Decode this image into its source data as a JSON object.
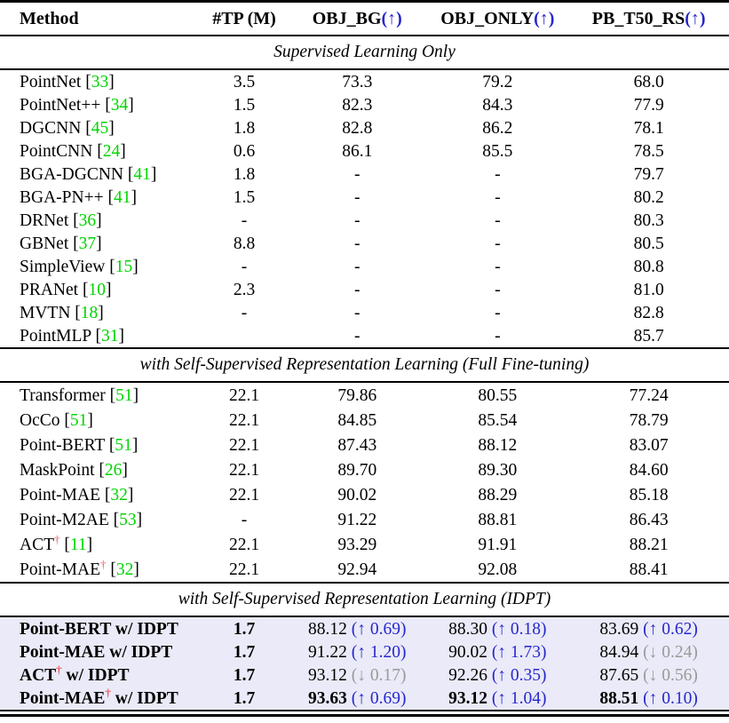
{
  "colors": {
    "accent_blue": "#2727cd",
    "citation_green": "#00d500",
    "muted_gray": "#9a9a9a",
    "dagger_red": "#ec5a5a",
    "highlight_bg": "#eaeaf8"
  },
  "header": {
    "columns": [
      {
        "label": "Method",
        "arrow": ""
      },
      {
        "label": "#TP (M)",
        "arrow": ""
      },
      {
        "label": "OBJ_BG",
        "arrow": "(↑)"
      },
      {
        "label": "OBJ_ONLY",
        "arrow": "(↑)"
      },
      {
        "label": "PB_T50_RS",
        "arrow": "(↑)"
      }
    ]
  },
  "sections": [
    {
      "title": "Supervised Learning Only",
      "highlight": false,
      "rows": [
        {
          "method": "PointNet",
          "cite": "33",
          "cells": [
            {
              "v": "3.5"
            },
            {
              "v": "73.3"
            },
            {
              "v": "79.2"
            },
            {
              "v": "68.0"
            }
          ]
        },
        {
          "method": "PointNet++",
          "cite": "34",
          "cells": [
            {
              "v": "1.5"
            },
            {
              "v": "82.3"
            },
            {
              "v": "84.3"
            },
            {
              "v": "77.9"
            }
          ]
        },
        {
          "method": "DGCNN",
          "cite": "45",
          "cells": [
            {
              "v": "1.8"
            },
            {
              "v": "82.8"
            },
            {
              "v": "86.2"
            },
            {
              "v": "78.1"
            }
          ]
        },
        {
          "method": "PointCNN",
          "cite": "24",
          "cells": [
            {
              "v": "0.6"
            },
            {
              "v": "86.1"
            },
            {
              "v": "85.5"
            },
            {
              "v": "78.5"
            }
          ]
        },
        {
          "method": "BGA-DGCNN",
          "cite": "41",
          "cells": [
            {
              "v": "1.8"
            },
            {
              "v": "-"
            },
            {
              "v": "-"
            },
            {
              "v": "79.7"
            }
          ]
        },
        {
          "method": "BGA-PN++",
          "cite": "41",
          "cells": [
            {
              "v": "1.5"
            },
            {
              "v": "-"
            },
            {
              "v": "-"
            },
            {
              "v": "80.2"
            }
          ]
        },
        {
          "method": "DRNet",
          "cite": "36",
          "cells": [
            {
              "v": "-"
            },
            {
              "v": "-"
            },
            {
              "v": "-"
            },
            {
              "v": "80.3"
            }
          ]
        },
        {
          "method": "GBNet",
          "cite": "37",
          "cells": [
            {
              "v": "8.8"
            },
            {
              "v": "-"
            },
            {
              "v": "-"
            },
            {
              "v": "80.5"
            }
          ]
        },
        {
          "method": "SimpleView",
          "cite": "15",
          "cells": [
            {
              "v": "-"
            },
            {
              "v": "-"
            },
            {
              "v": "-"
            },
            {
              "v": "80.8"
            }
          ]
        },
        {
          "method": "PRANet",
          "cite": "10",
          "cells": [
            {
              "v": "2.3"
            },
            {
              "v": "-"
            },
            {
              "v": "-"
            },
            {
              "v": "81.0"
            }
          ]
        },
        {
          "method": "MVTN",
          "cite": "18",
          "cells": [
            {
              "v": "-"
            },
            {
              "v": "-"
            },
            {
              "v": "-"
            },
            {
              "v": "82.8"
            }
          ]
        },
        {
          "method": "PointMLP",
          "cite": "31",
          "cells": [
            {
              "v": ""
            },
            {
              "v": "-"
            },
            {
              "v": "-"
            },
            {
              "v": "85.7"
            }
          ]
        }
      ]
    },
    {
      "title": "with Self-Supervised Representation Learning (Full Fine-tuning)",
      "highlight": false,
      "rows": [
        {
          "method": "Transformer",
          "cite": "51",
          "cells": [
            {
              "v": "22.1"
            },
            {
              "v": "79.86"
            },
            {
              "v": "80.55"
            },
            {
              "v": "77.24"
            }
          ]
        },
        {
          "method": "OcCo",
          "cite": "51",
          "cells": [
            {
              "v": "22.1"
            },
            {
              "v": "84.85"
            },
            {
              "v": "85.54"
            },
            {
              "v": "78.79"
            }
          ]
        },
        {
          "method": "Point-BERT",
          "cite": "51",
          "cells": [
            {
              "v": "22.1"
            },
            {
              "v": "87.43"
            },
            {
              "v": "88.12"
            },
            {
              "v": "83.07"
            }
          ]
        },
        {
          "method": "MaskPoint",
          "cite": "26",
          "cells": [
            {
              "v": "22.1"
            },
            {
              "v": "89.70"
            },
            {
              "v": "89.30"
            },
            {
              "v": "84.60"
            }
          ]
        },
        {
          "method": "Point-MAE",
          "cite": "32",
          "cells": [
            {
              "v": "22.1"
            },
            {
              "v": "90.02"
            },
            {
              "v": "88.29"
            },
            {
              "v": "85.18"
            }
          ]
        },
        {
          "method": "Point-M2AE",
          "cite": "53",
          "cells": [
            {
              "v": "-"
            },
            {
              "v": "91.22"
            },
            {
              "v": "88.81"
            },
            {
              "v": "86.43"
            }
          ]
        },
        {
          "method": "ACT",
          "dagger": "†",
          "cite": "11",
          "cells": [
            {
              "v": "22.1"
            },
            {
              "v": "93.29"
            },
            {
              "v": "91.91"
            },
            {
              "v": "88.21"
            }
          ]
        },
        {
          "method": "Point-MAE",
          "dagger": "†",
          "cite": "32",
          "cells": [
            {
              "v": "22.1"
            },
            {
              "v": "92.94"
            },
            {
              "v": "92.08"
            },
            {
              "v": "88.41"
            }
          ]
        }
      ]
    },
    {
      "title": "with Self-Supervised Representation Learning (IDPT)",
      "highlight": true,
      "rows": [
        {
          "method": "Point-BERT",
          "suffix": " w/ IDPT",
          "cells": [
            {
              "v": "1.7",
              "tp": true
            },
            {
              "v": "88.12",
              "d": "(↑ 0.69)",
              "dir": "up"
            },
            {
              "v": "88.30",
              "d": "(↑ 0.18)",
              "dir": "up"
            },
            {
              "v": "83.69",
              "d": "(↑ 0.62)",
              "dir": "up"
            }
          ]
        },
        {
          "method": "Point-MAE",
          "suffix": " w/ IDPT",
          "cells": [
            {
              "v": "1.7",
              "tp": true
            },
            {
              "v": "91.22",
              "d": "(↑ 1.20)",
              "dir": "up"
            },
            {
              "v": "90.02",
              "d": "(↑ 1.73)",
              "dir": "up"
            },
            {
              "v": "84.94",
              "d": "(↓ 0.24)",
              "dir": "down"
            }
          ]
        },
        {
          "method": "ACT",
          "dagger": "†",
          "suffix": " w/ IDPT",
          "cells": [
            {
              "v": "1.7",
              "tp": true
            },
            {
              "v": "93.12",
              "d": "(↓ 0.17)",
              "dir": "down"
            },
            {
              "v": "92.26",
              "d": "(↑ 0.35)",
              "dir": "up"
            },
            {
              "v": "87.65",
              "d": "(↓ 0.56)",
              "dir": "down"
            }
          ]
        },
        {
          "method": "Point-MAE",
          "dagger": "†",
          "suffix": " w/ IDPT",
          "cells": [
            {
              "v": "1.7",
              "tp": true
            },
            {
              "v": "93.63",
              "bold": true,
              "d": "(↑ 0.69)",
              "dir": "up"
            },
            {
              "v": "93.12",
              "bold": true,
              "d": "(↑ 1.04)",
              "dir": "up"
            },
            {
              "v": "88.51",
              "bold": true,
              "d": "(↑ 0.10)",
              "dir": "up"
            }
          ]
        }
      ]
    }
  ]
}
